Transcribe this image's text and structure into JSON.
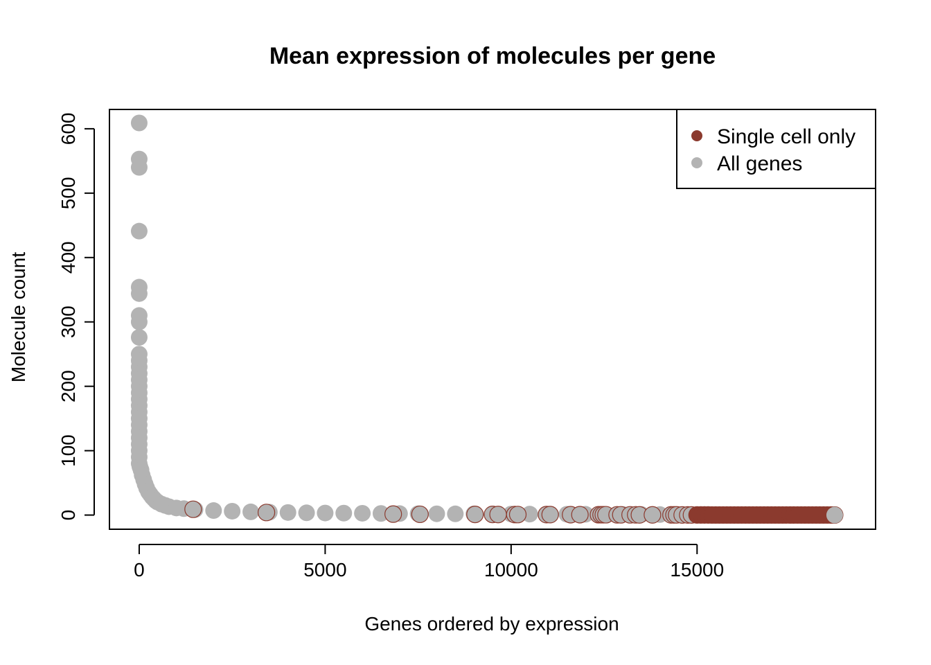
{
  "chart_data": {
    "type": "scatter",
    "title": "Mean expression of molecules per gene",
    "xlabel": "Genes ordered by expression",
    "ylabel": "Molecule count",
    "xlim": [
      -800,
      19800
    ],
    "ylim": [
      -22,
      630
    ],
    "xticks": [
      0,
      5000,
      10000,
      15000
    ],
    "xtick_labels": [
      "0",
      "5000",
      "10000",
      "15000"
    ],
    "yticks": [
      0,
      100,
      200,
      300,
      400,
      500,
      600
    ],
    "ytick_labels": [
      "0",
      "100",
      "200",
      "300",
      "400",
      "500",
      "600"
    ],
    "grid": false,
    "legend_position": "top-right",
    "legend": [
      {
        "label": "Single cell only",
        "color": "#8b3a2e"
      },
      {
        "label": "All genes",
        "color": "#b3b3b3"
      }
    ],
    "colors": {
      "single_cell": "#8b3a2e",
      "all_genes": "#b3b3b3"
    },
    "series": [
      {
        "name": "All genes",
        "color": "#b3b3b3",
        "x": [
          0,
          0,
          0,
          0,
          0,
          0,
          0,
          0,
          0,
          0,
          0,
          0,
          0,
          0,
          0,
          0,
          0,
          0,
          0,
          0,
          0,
          0,
          0,
          0,
          0,
          0,
          0,
          20,
          50,
          80,
          120,
          160,
          200,
          250,
          300,
          350,
          400,
          450,
          500,
          600,
          700,
          800,
          1000,
          1200,
          1500,
          2000,
          2500,
          3000,
          3500,
          4000,
          4500,
          5000,
          5500,
          6000,
          6500,
          7000,
          7500,
          8000,
          8500,
          9000,
          9500,
          10000,
          10500,
          11000,
          11500,
          12000,
          12500,
          13000,
          13500,
          14000,
          14500,
          15000
        ],
        "y": [
          609,
          553,
          540,
          441,
          354,
          344,
          310,
          300,
          276,
          250,
          240,
          230,
          220,
          210,
          200,
          190,
          180,
          170,
          160,
          150,
          140,
          130,
          120,
          110,
          100,
          90,
          80,
          75,
          70,
          62,
          55,
          48,
          42,
          36,
          32,
          28,
          25,
          22,
          20,
          17,
          15,
          13,
          11,
          10,
          8.5,
          7,
          6,
          5,
          4.5,
          4,
          3.5,
          3.2,
          3,
          2.8,
          2.5,
          2.3,
          2.1,
          2,
          1.9,
          1.8,
          1.7,
          1.6,
          1.5,
          1.4,
          1.3,
          1.2,
          1.1,
          1.0,
          0.9,
          0.8,
          0.7,
          0.6
        ]
      },
      {
        "name": "Single cell only",
        "color": "#8b3a2e",
        "x": [
          1450,
          3420,
          6830,
          7550,
          9030,
          9500,
          9650,
          10100,
          10180,
          10950,
          11050,
          11600,
          11850,
          12350,
          12420,
          12480,
          12550,
          12850,
          12950,
          13200,
          13350,
          13450,
          13800,
          14300,
          14380,
          14450,
          14600,
          14750,
          14850,
          15000,
          15100,
          15200,
          15300,
          15400,
          15500,
          15600,
          15700,
          15800,
          15900,
          16000,
          16100,
          16200,
          16300,
          16400,
          16500,
          16600,
          16700,
          16800,
          16900,
          17000,
          17100,
          17200,
          17300,
          17400,
          17500,
          17600,
          17700,
          17800,
          17900,
          18000,
          18100,
          18200,
          18300,
          18400,
          18500,
          18600,
          18700
        ],
        "y": [
          9,
          4,
          1.5,
          1.2,
          1,
          1,
          0.9,
          0.8,
          0.8,
          0.7,
          0.7,
          0.6,
          0.6,
          0.5,
          0.5,
          0.5,
          0.5,
          0.4,
          0.4,
          0.4,
          0.4,
          0.3,
          0.3,
          0.3,
          0.3,
          0.3,
          0.2,
          0.2,
          0.2,
          0.2,
          0.2,
          0.2,
          0.2,
          0.1,
          0.1,
          0.1,
          0.1,
          0.1,
          0.1,
          0.1,
          0.1,
          0.1,
          0.1,
          0.1,
          0.1,
          0.1,
          0.1,
          0.1,
          0.1,
          0.1,
          0.1,
          0.1,
          0.1,
          0.1,
          0.1,
          0.1,
          0.1,
          0.1,
          0.1,
          0.1,
          0.1,
          0.1,
          0.1,
          0.1,
          0.1,
          0.1,
          0.1
        ]
      }
    ]
  }
}
